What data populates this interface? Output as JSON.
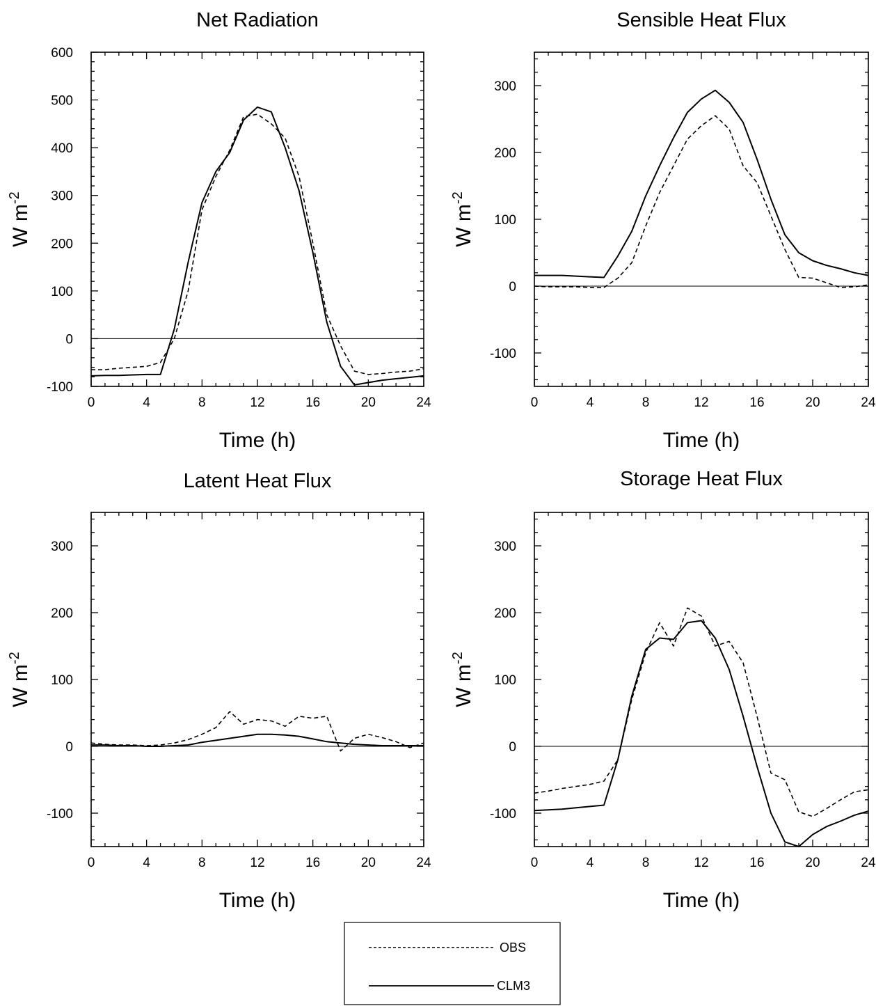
{
  "chart_data": [
    {
      "type": "line",
      "title": "Net Radiation",
      "xlabel": "Time (h)",
      "ylabel": "W m",
      "ylabel_sup": "-2",
      "xlim": [
        0,
        24
      ],
      "ylim": [
        -100,
        600
      ],
      "xticks": [
        0,
        4,
        8,
        12,
        16,
        20,
        24
      ],
      "yticks": [
        -100,
        0,
        100,
        200,
        300,
        400,
        500,
        600
      ],
      "series": [
        {
          "name": "OBS",
          "style": "dashed",
          "x": [
            0,
            1,
            2,
            3,
            4,
            5,
            6,
            7,
            8,
            9,
            10,
            11,
            12,
            13,
            14,
            15,
            16,
            17,
            18,
            19,
            20,
            21,
            22,
            23,
            24
          ],
          "y": [
            -65,
            -65,
            -62,
            -60,
            -58,
            -50,
            0,
            100,
            270,
            340,
            395,
            465,
            470,
            450,
            420,
            340,
            200,
            50,
            -15,
            -68,
            -75,
            -73,
            -70,
            -68,
            -63
          ]
        },
        {
          "name": "CLM3",
          "style": "solid",
          "x": [
            0,
            1,
            2,
            3,
            4,
            5,
            6,
            7,
            8,
            9,
            10,
            11,
            12,
            13,
            14,
            15,
            16,
            17,
            18,
            19,
            20,
            21,
            22,
            23,
            24
          ],
          "y": [
            -78,
            -77,
            -77,
            -76,
            -75,
            -75,
            20,
            160,
            285,
            350,
            390,
            458,
            485,
            475,
            400,
            310,
            180,
            35,
            -58,
            -97,
            -92,
            -87,
            -84,
            -81,
            -78
          ]
        }
      ]
    },
    {
      "type": "line",
      "title": "Sensible Heat Flux",
      "xlabel": "Time (h)",
      "ylabel": "W m",
      "ylabel_sup": "-2",
      "xlim": [
        0,
        24
      ],
      "ylim": [
        -150,
        350
      ],
      "xticks": [
        0,
        4,
        8,
        12,
        16,
        20,
        24
      ],
      "yticks": [
        -100,
        0,
        100,
        200,
        300
      ],
      "series": [
        {
          "name": "OBS",
          "style": "dashed",
          "x": [
            0,
            1,
            2,
            3,
            4,
            5,
            6,
            7,
            8,
            9,
            10,
            11,
            12,
            13,
            14,
            15,
            16,
            17,
            18,
            19,
            20,
            21,
            22,
            23,
            24
          ],
          "y": [
            0,
            -1,
            -1,
            -1,
            -2,
            -2,
            12,
            35,
            90,
            140,
            180,
            220,
            240,
            255,
            235,
            180,
            155,
            105,
            55,
            13,
            12,
            5,
            -2,
            -1,
            2
          ]
        },
        {
          "name": "CLM3",
          "style": "solid",
          "x": [
            0,
            1,
            2,
            3,
            4,
            5,
            6,
            7,
            8,
            9,
            10,
            11,
            12,
            13,
            14,
            15,
            16,
            17,
            18,
            19,
            20,
            21,
            22,
            23,
            24
          ],
          "y": [
            16,
            16,
            16,
            15,
            14,
            13,
            45,
            82,
            135,
            180,
            222,
            260,
            280,
            293,
            275,
            245,
            190,
            130,
            77,
            50,
            38,
            31,
            26,
            20,
            16
          ]
        }
      ]
    },
    {
      "type": "line",
      "title": "Latent Heat Flux",
      "xlabel": "Time (h)",
      "ylabel": "W m",
      "ylabel_sup": "-2",
      "xlim": [
        0,
        24
      ],
      "ylim": [
        -150,
        350
      ],
      "xticks": [
        0,
        4,
        8,
        12,
        16,
        20,
        24
      ],
      "yticks": [
        -100,
        0,
        100,
        200,
        300
      ],
      "series": [
        {
          "name": "OBS",
          "style": "dashed",
          "x": [
            0,
            1,
            2,
            3,
            4,
            5,
            6,
            7,
            8,
            9,
            10,
            11,
            12,
            13,
            14,
            15,
            16,
            17,
            18,
            19,
            20,
            21,
            22,
            23,
            24
          ],
          "y": [
            5,
            3,
            2,
            2,
            1,
            2,
            5,
            10,
            18,
            28,
            52,
            33,
            40,
            38,
            30,
            45,
            42,
            45,
            -7,
            12,
            18,
            13,
            7,
            -2,
            5
          ]
        },
        {
          "name": "CLM3",
          "style": "solid",
          "x": [
            0,
            1,
            2,
            3,
            4,
            5,
            6,
            7,
            8,
            9,
            10,
            11,
            12,
            13,
            14,
            15,
            16,
            17,
            18,
            19,
            20,
            21,
            22,
            23,
            24
          ],
          "y": [
            2,
            2,
            1,
            1,
            0,
            0,
            1,
            2,
            6,
            9,
            12,
            15,
            18,
            18,
            17,
            15,
            11,
            7,
            5,
            3,
            2,
            1,
            1,
            1,
            1
          ]
        }
      ]
    },
    {
      "type": "line",
      "title": "Storage Heat Flux",
      "xlabel": "Time (h)",
      "ylabel": "W m",
      "ylabel_sup": "-2",
      "xlim": [
        0,
        24
      ],
      "ylim": [
        -150,
        350
      ],
      "xticks": [
        0,
        4,
        8,
        12,
        16,
        20,
        24
      ],
      "yticks": [
        -100,
        0,
        100,
        200,
        300
      ],
      "series": [
        {
          "name": "OBS",
          "style": "dashed",
          "x": [
            0,
            1,
            2,
            3,
            4,
            5,
            6,
            7,
            8,
            9,
            10,
            11,
            12,
            13,
            14,
            15,
            16,
            17,
            18,
            19,
            20,
            21,
            22,
            23,
            24
          ],
          "y": [
            -70,
            -67,
            -63,
            -60,
            -57,
            -52,
            -20,
            70,
            140,
            185,
            150,
            207,
            195,
            150,
            157,
            125,
            45,
            -40,
            -50,
            -98,
            -105,
            -93,
            -80,
            -68,
            -65
          ]
        },
        {
          "name": "CLM3",
          "style": "solid",
          "x": [
            0,
            1,
            2,
            3,
            4,
            5,
            6,
            7,
            8,
            9,
            10,
            11,
            12,
            13,
            14,
            15,
            16,
            17,
            18,
            19,
            20,
            21,
            22,
            23,
            24
          ],
          "y": [
            -96,
            -95,
            -94,
            -92,
            -90,
            -88,
            -20,
            75,
            145,
            162,
            160,
            185,
            188,
            162,
            115,
            45,
            -30,
            -100,
            -143,
            -150,
            -132,
            -120,
            -112,
            -103,
            -97
          ]
        }
      ]
    }
  ],
  "legend": {
    "entries": [
      {
        "label": "OBS",
        "style": "dashed"
      },
      {
        "label": "CLM3",
        "style": "solid"
      }
    ]
  }
}
